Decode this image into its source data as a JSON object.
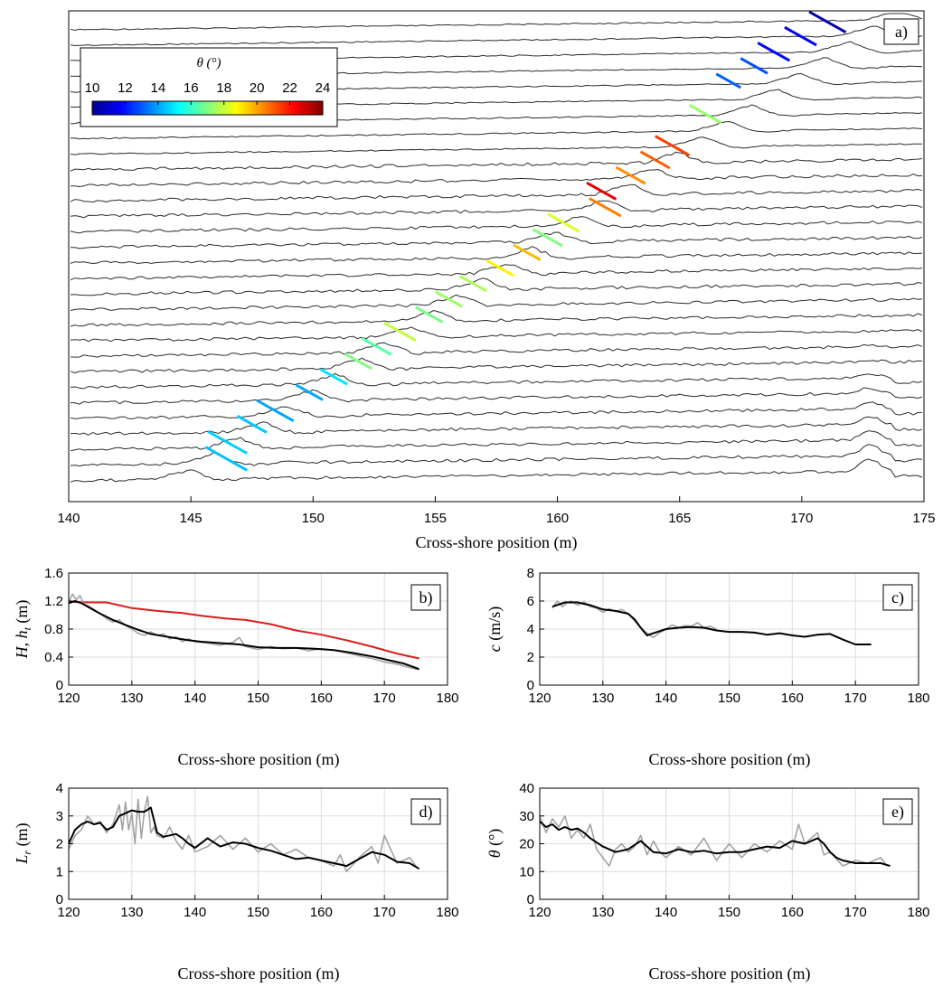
{
  "chart_data": [
    {
      "id": "a",
      "panel_label": "a)",
      "type": "line",
      "title": "",
      "xlabel": "Cross-shore position (m)",
      "ylabel": "",
      "xlim": [
        140,
        175
      ],
      "xticks": [
        140,
        145,
        150,
        155,
        160,
        165,
        170,
        175
      ],
      "n_profiles": 30,
      "grid": false,
      "colorbar": {
        "label": "θ (°)",
        "min": 10,
        "max": 24,
        "ticks": [
          10,
          12,
          14,
          16,
          18,
          20,
          22,
          24
        ],
        "colormap": "jet",
        "placement": "top-left"
      },
      "series": [
        {
          "name": "tracked_crests",
          "x0": [
            170.3,
            169.3,
            168.2,
            167.5,
            166.5,
            165.4,
            164.0,
            163.4,
            162.4,
            161.2,
            161.3,
            159.6,
            159.0,
            158.2,
            157.1,
            156.0,
            155.0,
            154.2,
            152.9,
            152.0,
            151.3,
            150.3,
            149.3,
            147.7,
            146.9,
            145.7,
            145.6
          ],
          "x1": [
            171.8,
            170.6,
            169.5,
            168.6,
            167.5,
            166.7,
            165.4,
            164.6,
            163.6,
            162.4,
            162.6,
            160.9,
            160.2,
            159.3,
            158.2,
            157.1,
            156.1,
            155.3,
            154.2,
            153.2,
            152.4,
            151.4,
            150.4,
            149.2,
            148.1,
            147.3,
            147.3
          ],
          "theta": [
            10.6,
            11.5,
            11.8,
            12.8,
            13.1,
            17.3,
            21.4,
            21.0,
            20.3,
            22.6,
            20.5,
            18.3,
            17.0,
            19.7,
            18.9,
            17.6,
            17.4,
            16.9,
            17.9,
            16.4,
            17.0,
            14.9,
            14.1,
            14.0,
            14.5,
            14.6,
            14.4
          ],
          "profile_index": [
            0,
            1,
            2,
            3,
            4,
            6,
            8,
            9,
            10,
            11,
            12,
            13,
            14,
            15,
            16,
            17,
            18,
            19,
            20,
            21,
            22,
            23,
            24,
            25,
            26,
            27,
            28
          ]
        }
      ]
    },
    {
      "id": "b",
      "panel_label": "b)",
      "type": "line",
      "xlabel": "Cross-shore position (m)",
      "ylabel": "H, h_t (m)",
      "xlim": [
        120,
        180
      ],
      "ylim": [
        0,
        1.6
      ],
      "xticks": [
        120,
        130,
        140,
        150,
        160,
        170,
        180
      ],
      "yticks": [
        0,
        0.4,
        0.8,
        1.2,
        1.6
      ],
      "yticklabels": [
        "0",
        "0.4",
        "0.8",
        "1.2",
        "1.6"
      ],
      "grid": true,
      "series": [
        {
          "name": "h_t",
          "color": "#dd1d1d",
          "x": [
            120,
            123,
            126,
            130,
            134,
            138,
            141,
            145,
            148,
            152,
            156,
            160,
            164,
            168,
            172,
            175.5
          ],
          "y": [
            1.19,
            1.18,
            1.18,
            1.1,
            1.06,
            1.03,
            0.99,
            0.95,
            0.93,
            0.87,
            0.78,
            0.72,
            0.64,
            0.55,
            0.45,
            0.38
          ]
        },
        {
          "name": "H_raw",
          "color": "#a3a3a3",
          "x": [
            120,
            120.6,
            121.2,
            121.8,
            122.4,
            123,
            124,
            125,
            126,
            127,
            128,
            129,
            130,
            131,
            132,
            133,
            134,
            135,
            136,
            137,
            138,
            139,
            140,
            142,
            144,
            146,
            147,
            148,
            150,
            152,
            154,
            156,
            158,
            160,
            162,
            164,
            166,
            168,
            170,
            172,
            174,
            175.5
          ],
          "y": [
            1.18,
            1.3,
            1.22,
            1.28,
            1.15,
            1.14,
            1.08,
            1.02,
            0.95,
            0.9,
            0.93,
            0.85,
            0.8,
            0.74,
            0.71,
            0.76,
            0.71,
            0.73,
            0.66,
            0.69,
            0.62,
            0.66,
            0.62,
            0.6,
            0.57,
            0.61,
            0.68,
            0.55,
            0.51,
            0.55,
            0.52,
            0.53,
            0.49,
            0.52,
            0.5,
            0.46,
            0.42,
            0.38,
            0.33,
            0.3,
            0.25,
            0.22
          ]
        },
        {
          "name": "H",
          "color": "#000000",
          "x": [
            120,
            121,
            122,
            123,
            125,
            127,
            129,
            131,
            133,
            135,
            137,
            139,
            141,
            144,
            147,
            150,
            153,
            156,
            159,
            162,
            165,
            168,
            171,
            173,
            175.5
          ],
          "y": [
            1.17,
            1.2,
            1.17,
            1.12,
            1.02,
            0.93,
            0.86,
            0.79,
            0.73,
            0.7,
            0.67,
            0.64,
            0.62,
            0.6,
            0.58,
            0.54,
            0.53,
            0.53,
            0.52,
            0.5,
            0.46,
            0.41,
            0.35,
            0.31,
            0.23
          ]
        }
      ]
    },
    {
      "id": "c",
      "panel_label": "c)",
      "type": "line",
      "xlabel": "Cross-shore position (m)",
      "ylabel": "c (m/s)",
      "xlim": [
        120,
        180
      ],
      "ylim": [
        0,
        8
      ],
      "xticks": [
        120,
        130,
        140,
        150,
        160,
        170,
        180
      ],
      "yticks": [
        0,
        2,
        4,
        6,
        8
      ],
      "grid": true,
      "series": [
        {
          "name": "c_raw",
          "color": "#a3a3a3",
          "x": [
            122,
            122.8,
            123.6,
            124.4,
            125,
            126,
            127,
            128,
            129,
            130,
            131,
            132,
            133,
            134,
            135,
            136,
            137,
            138,
            139,
            140,
            141,
            142,
            143,
            144,
            145,
            146,
            147,
            148
          ],
          "y": [
            5.5,
            6.0,
            5.6,
            5.9,
            6.0,
            5.7,
            5.95,
            5.6,
            5.5,
            5.2,
            5.45,
            5.25,
            5.4,
            5.1,
            4.6,
            4.1,
            3.7,
            3.4,
            3.75,
            4.0,
            4.3,
            4.1,
            4.25,
            4.2,
            4.45,
            4.1,
            4.2,
            4.0
          ]
        },
        {
          "name": "c",
          "color": "#000000",
          "x": [
            122,
            124,
            126,
            128,
            130,
            132,
            134,
            135,
            136,
            137,
            138,
            140,
            142,
            144,
            146,
            148,
            150,
            152,
            154,
            156,
            158,
            160,
            162,
            164,
            166,
            168,
            170,
            172.5
          ],
          "y": [
            5.6,
            5.9,
            5.9,
            5.7,
            5.4,
            5.3,
            5.1,
            4.7,
            4.1,
            3.55,
            3.7,
            4.0,
            4.1,
            4.15,
            4.1,
            3.9,
            3.8,
            3.8,
            3.75,
            3.6,
            3.7,
            3.55,
            3.45,
            3.6,
            3.65,
            3.25,
            2.9,
            2.9
          ]
        }
      ]
    },
    {
      "id": "d",
      "panel_label": "d)",
      "type": "line",
      "xlabel": "Cross-shore position (m)",
      "ylabel": "L_r (m)",
      "xlim": [
        120,
        180
      ],
      "ylim": [
        0,
        4
      ],
      "xticks": [
        120,
        130,
        140,
        150,
        160,
        170,
        180
      ],
      "yticks": [
        0,
        1,
        2,
        3,
        4
      ],
      "grid": true,
      "series": [
        {
          "name": "L_raw",
          "color": "#a3a3a3",
          "x": [
            120,
            121,
            122,
            123,
            124,
            125,
            126,
            127,
            128,
            128.5,
            129,
            129.5,
            130,
            130.5,
            131,
            131.5,
            132,
            132.5,
            133,
            133.5,
            134,
            135,
            136,
            137,
            138,
            139,
            140,
            142,
            144,
            146,
            148,
            150,
            152,
            154,
            156,
            158,
            160,
            162,
            163,
            164,
            166,
            168,
            169,
            170,
            172,
            174,
            175
          ],
          "y": [
            1.8,
            2.3,
            2.5,
            3.0,
            2.7,
            2.8,
            2.4,
            2.7,
            3.4,
            2.5,
            3.5,
            2.5,
            3.1,
            2.0,
            3.6,
            2.2,
            3.2,
            3.7,
            2.4,
            2.6,
            2.3,
            2.2,
            2.6,
            2.1,
            1.8,
            2.3,
            1.7,
            1.9,
            2.3,
            1.8,
            2.2,
            1.7,
            2.0,
            1.6,
            1.8,
            1.5,
            1.4,
            1.2,
            1.6,
            1.0,
            1.5,
            1.9,
            1.3,
            2.3,
            1.3,
            1.5,
            1.2
          ]
        },
        {
          "name": "L_r",
          "color": "#000000",
          "x": [
            120,
            121,
            122,
            123,
            124,
            125,
            126,
            127,
            128,
            130,
            131,
            132,
            133,
            134,
            135,
            136,
            137,
            138,
            139,
            140,
            142,
            144,
            146,
            148,
            150,
            152,
            154,
            156,
            158,
            160,
            162,
            164,
            166,
            168,
            170,
            172,
            174,
            175.5
          ],
          "y": [
            2.0,
            2.5,
            2.7,
            2.8,
            2.7,
            2.75,
            2.5,
            2.6,
            3.0,
            3.2,
            3.15,
            3.15,
            3.3,
            2.4,
            2.25,
            2.3,
            2.35,
            2.2,
            2.0,
            1.85,
            2.2,
            1.9,
            2.05,
            2.0,
            1.85,
            1.75,
            1.6,
            1.45,
            1.5,
            1.4,
            1.3,
            1.2,
            1.45,
            1.7,
            1.6,
            1.35,
            1.3,
            1.1
          ]
        }
      ]
    },
    {
      "id": "e",
      "panel_label": "e)",
      "type": "line",
      "xlabel": "Cross-shore position (m)",
      "ylabel": "θ (°)",
      "xlim": [
        120,
        180
      ],
      "ylim": [
        0,
        40
      ],
      "xticks": [
        120,
        130,
        140,
        150,
        160,
        170,
        180
      ],
      "yticks": [
        0,
        10,
        20,
        30,
        40
      ],
      "grid": true,
      "series": [
        {
          "name": "theta_raw",
          "color": "#a3a3a3",
          "x": [
            120,
            121,
            122,
            123,
            124,
            125,
            126,
            127,
            128,
            129,
            130,
            131,
            132,
            133,
            134,
            135,
            136,
            137,
            138,
            139,
            140,
            142,
            144,
            146,
            148,
            150,
            152,
            154,
            156,
            158,
            160,
            161,
            162,
            163,
            164,
            165,
            166,
            168,
            170,
            172,
            174,
            175
          ],
          "y": [
            30,
            24,
            29,
            26,
            30,
            22,
            25,
            22,
            27,
            18,
            15,
            12,
            18,
            20,
            17,
            19,
            23,
            16,
            21,
            17,
            15,
            19,
            16,
            22,
            14,
            20,
            15,
            20,
            17,
            21,
            18,
            27,
            20,
            22,
            24,
            16,
            17,
            12,
            14,
            13,
            15,
            12
          ]
        },
        {
          "name": "theta",
          "color": "#000000",
          "x": [
            120,
            121,
            122,
            123,
            124,
            125,
            126,
            127,
            128,
            130,
            132,
            134,
            136,
            138,
            140,
            142,
            144,
            146,
            148,
            150,
            152,
            154,
            156,
            158,
            160,
            162,
            164,
            165,
            166,
            167,
            168,
            170,
            172,
            174,
            175.5
          ],
          "y": [
            28,
            26,
            27,
            25,
            26,
            25,
            25.5,
            24,
            22,
            19,
            17,
            18,
            21,
            17,
            16.5,
            18,
            17,
            17.5,
            16.5,
            17,
            17,
            18,
            19,
            18.5,
            21,
            20,
            22,
            20,
            17,
            15,
            14,
            13,
            13,
            13,
            12
          ]
        }
      ]
    }
  ]
}
